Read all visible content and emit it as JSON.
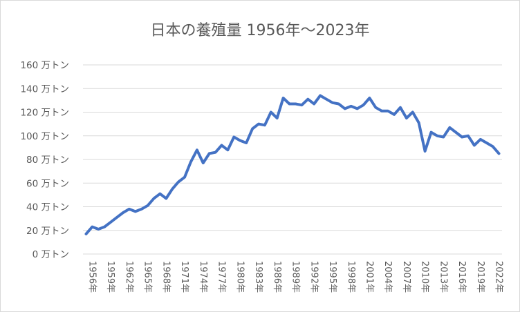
{
  "chart_data": {
    "type": "line",
    "title": "日本の養殖量 1956年～2023年",
    "xlabel": "",
    "ylabel": "",
    "ylim": [
      0,
      160
    ],
    "y_unit": "万トン",
    "grid": true,
    "series_color": "#4472c4",
    "y_ticks": [
      {
        "value": 0,
        "label": "0 万トン"
      },
      {
        "value": 20,
        "label": "20 万トン"
      },
      {
        "value": 40,
        "label": "40 万トン"
      },
      {
        "value": 60,
        "label": "60 万トン"
      },
      {
        "value": 80,
        "label": "80 万トン"
      },
      {
        "value": 100,
        "label": "100 万トン"
      },
      {
        "value": 120,
        "label": "120 万トン"
      },
      {
        "value": 140,
        "label": "140 万トン"
      },
      {
        "value": 160,
        "label": "160 万トン"
      }
    ],
    "x_ticks": [
      "1956年",
      "1959年",
      "1962年",
      "1965年",
      "1968年",
      "1971年",
      "1974年",
      "1977年",
      "1980年",
      "1983年",
      "1986年",
      "1989年",
      "1992年",
      "1995年",
      "1998年",
      "2001年",
      "2004年",
      "2007年",
      "2010年",
      "2013年",
      "2016年",
      "2019年",
      "2022年"
    ],
    "series": [
      {
        "name": "養殖量",
        "x": [
          1956,
          1957,
          1958,
          1959,
          1960,
          1961,
          1962,
          1963,
          1964,
          1965,
          1966,
          1967,
          1968,
          1969,
          1970,
          1971,
          1972,
          1973,
          1974,
          1975,
          1976,
          1977,
          1978,
          1979,
          1980,
          1981,
          1982,
          1983,
          1984,
          1985,
          1986,
          1987,
          1988,
          1989,
          1990,
          1991,
          1992,
          1993,
          1994,
          1995,
          1996,
          1997,
          1998,
          1999,
          2000,
          2001,
          2002,
          2003,
          2004,
          2005,
          2006,
          2007,
          2008,
          2009,
          2010,
          2011,
          2012,
          2013,
          2014,
          2015,
          2016,
          2017,
          2018,
          2019,
          2020,
          2021,
          2022,
          2023
        ],
        "values": [
          17,
          23,
          21,
          23,
          27,
          31,
          35,
          38,
          36,
          38,
          41,
          47,
          51,
          47,
          55,
          61,
          65,
          78,
          88,
          77,
          85,
          86,
          92,
          88,
          99,
          96,
          94,
          106,
          110,
          109,
          120,
          115,
          132,
          127,
          127,
          126,
          131,
          127,
          134,
          131,
          128,
          127,
          123,
          125,
          123,
          126,
          132,
          124,
          121,
          121,
          118,
          124,
          115,
          120,
          111,
          87,
          103,
          100,
          99,
          107,
          103,
          99,
          100,
          92,
          97,
          94,
          91,
          85
        ]
      }
    ]
  }
}
